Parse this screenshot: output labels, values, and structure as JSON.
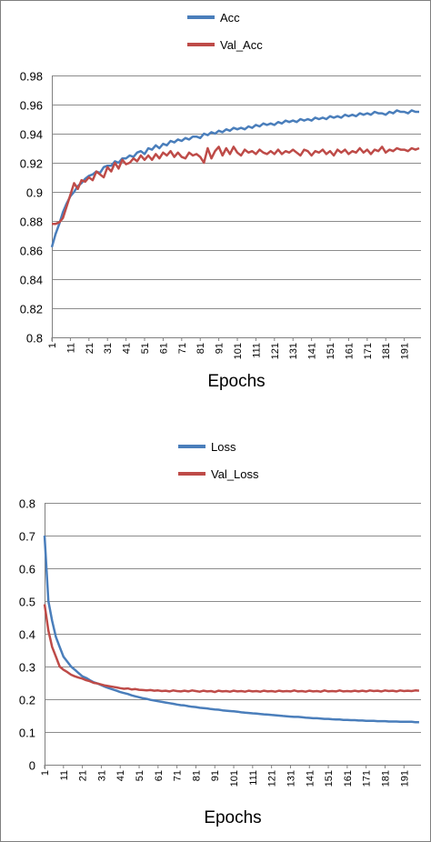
{
  "chart_data": [
    {
      "type": "line",
      "xlabel": "Epochs",
      "ylabel": "",
      "title": "",
      "legend_position": "top-center",
      "grid": true,
      "ylim": [
        0.8,
        0.98
      ],
      "yticks": [
        "0.8",
        "0.82",
        "0.84",
        "0.86",
        "0.88",
        "0.9",
        "0.92",
        "0.94",
        "0.96",
        "0.98"
      ],
      "xticks": [
        "1",
        "11",
        "21",
        "31",
        "41",
        "51",
        "61",
        "71",
        "81",
        "91",
        "101",
        "111",
        "121",
        "131",
        "141",
        "151",
        "161",
        "171",
        "181",
        "191"
      ],
      "x": [
        1,
        3,
        5,
        7,
        9,
        11,
        13,
        15,
        17,
        19,
        21,
        23,
        25,
        27,
        29,
        31,
        33,
        35,
        37,
        39,
        41,
        43,
        45,
        47,
        49,
        51,
        53,
        55,
        57,
        59,
        61,
        63,
        65,
        67,
        69,
        71,
        73,
        75,
        77,
        79,
        81,
        83,
        85,
        87,
        89,
        91,
        93,
        95,
        97,
        99,
        101,
        103,
        105,
        107,
        109,
        111,
        113,
        115,
        117,
        119,
        121,
        123,
        125,
        127,
        129,
        131,
        133,
        135,
        137,
        139,
        141,
        143,
        145,
        147,
        149,
        151,
        153,
        155,
        157,
        159,
        161,
        163,
        165,
        167,
        169,
        171,
        173,
        175,
        177,
        179,
        181,
        183,
        185,
        187,
        189,
        191,
        193,
        195,
        197,
        199
      ],
      "series": [
        {
          "name": "Acc",
          "color": "#4a7ebb",
          "values": [
            0.862,
            0.871,
            0.878,
            0.886,
            0.892,
            0.897,
            0.9,
            0.904,
            0.906,
            0.909,
            0.911,
            0.912,
            0.914,
            0.913,
            0.917,
            0.918,
            0.918,
            0.921,
            0.92,
            0.923,
            0.923,
            0.925,
            0.924,
            0.927,
            0.928,
            0.926,
            0.93,
            0.929,
            0.932,
            0.93,
            0.933,
            0.932,
            0.935,
            0.934,
            0.936,
            0.935,
            0.937,
            0.936,
            0.938,
            0.938,
            0.937,
            0.94,
            0.939,
            0.941,
            0.94,
            0.942,
            0.941,
            0.943,
            0.942,
            0.944,
            0.943,
            0.944,
            0.943,
            0.945,
            0.944,
            0.946,
            0.945,
            0.947,
            0.946,
            0.947,
            0.946,
            0.948,
            0.947,
            0.949,
            0.948,
            0.949,
            0.948,
            0.95,
            0.949,
            0.95,
            0.949,
            0.951,
            0.95,
            0.951,
            0.95,
            0.952,
            0.951,
            0.952,
            0.951,
            0.953,
            0.952,
            0.953,
            0.952,
            0.954,
            0.953,
            0.954,
            0.953,
            0.955,
            0.954,
            0.954,
            0.953,
            0.955,
            0.954,
            0.956,
            0.955,
            0.955,
            0.954,
            0.956,
            0.955,
            0.955
          ]
        },
        {
          "name": "Val_Acc",
          "color": "#be4b48",
          "values": [
            0.878,
            0.878,
            0.879,
            0.882,
            0.89,
            0.898,
            0.906,
            0.902,
            0.908,
            0.907,
            0.91,
            0.908,
            0.914,
            0.912,
            0.91,
            0.917,
            0.914,
            0.92,
            0.916,
            0.922,
            0.919,
            0.92,
            0.923,
            0.921,
            0.925,
            0.922,
            0.925,
            0.922,
            0.926,
            0.923,
            0.927,
            0.925,
            0.928,
            0.924,
            0.927,
            0.924,
            0.923,
            0.927,
            0.925,
            0.926,
            0.924,
            0.92,
            0.93,
            0.923,
            0.928,
            0.931,
            0.925,
            0.93,
            0.926,
            0.931,
            0.927,
            0.925,
            0.929,
            0.927,
            0.928,
            0.926,
            0.929,
            0.927,
            0.926,
            0.928,
            0.926,
            0.929,
            0.926,
            0.928,
            0.927,
            0.929,
            0.927,
            0.925,
            0.929,
            0.928,
            0.925,
            0.928,
            0.927,
            0.929,
            0.926,
            0.928,
            0.925,
            0.929,
            0.927,
            0.929,
            0.926,
            0.928,
            0.927,
            0.93,
            0.927,
            0.929,
            0.926,
            0.929,
            0.928,
            0.931,
            0.927,
            0.929,
            0.928,
            0.93,
            0.929,
            0.929,
            0.928,
            0.93,
            0.929,
            0.93
          ]
        }
      ]
    },
    {
      "type": "line",
      "xlabel": "Epochs",
      "ylabel": "",
      "title": "",
      "legend_position": "top-center",
      "grid": true,
      "ylim": [
        0,
        0.8
      ],
      "yticks": [
        "0",
        "0.1",
        "0.2",
        "0.3",
        "0.4",
        "0.5",
        "0.6",
        "0.7",
        "0.8"
      ],
      "xticks": [
        "1",
        "11",
        "21",
        "31",
        "41",
        "51",
        "61",
        "71",
        "81",
        "91",
        "101",
        "111",
        "121",
        "131",
        "141",
        "151",
        "161",
        "171",
        "181",
        "191"
      ],
      "x": [
        1,
        3,
        5,
        7,
        9,
        11,
        13,
        15,
        17,
        19,
        21,
        23,
        25,
        27,
        29,
        31,
        33,
        35,
        37,
        39,
        41,
        43,
        45,
        47,
        49,
        51,
        53,
        55,
        57,
        59,
        61,
        63,
        65,
        67,
        69,
        71,
        73,
        75,
        77,
        79,
        81,
        83,
        85,
        87,
        89,
        91,
        93,
        95,
        97,
        99,
        101,
        103,
        105,
        107,
        109,
        111,
        113,
        115,
        117,
        119,
        121,
        123,
        125,
        127,
        129,
        131,
        133,
        135,
        137,
        139,
        141,
        143,
        145,
        147,
        149,
        151,
        153,
        155,
        157,
        159,
        161,
        163,
        165,
        167,
        169,
        171,
        173,
        175,
        177,
        179,
        181,
        183,
        185,
        187,
        189,
        191,
        193,
        195,
        197,
        199
      ],
      "series": [
        {
          "name": "Loss",
          "color": "#4a7ebb",
          "values": [
            0.7,
            0.5,
            0.44,
            0.39,
            0.36,
            0.33,
            0.315,
            0.3,
            0.29,
            0.28,
            0.27,
            0.265,
            0.258,
            0.252,
            0.248,
            0.243,
            0.238,
            0.234,
            0.23,
            0.226,
            0.222,
            0.219,
            0.216,
            0.212,
            0.209,
            0.206,
            0.203,
            0.201,
            0.198,
            0.196,
            0.194,
            0.192,
            0.19,
            0.188,
            0.186,
            0.184,
            0.182,
            0.181,
            0.179,
            0.177,
            0.176,
            0.174,
            0.173,
            0.172,
            0.17,
            0.169,
            0.168,
            0.166,
            0.165,
            0.164,
            0.163,
            0.162,
            0.16,
            0.159,
            0.158,
            0.157,
            0.156,
            0.155,
            0.154,
            0.153,
            0.152,
            0.151,
            0.15,
            0.149,
            0.148,
            0.147,
            0.146,
            0.146,
            0.145,
            0.144,
            0.143,
            0.142,
            0.142,
            0.141,
            0.14,
            0.14,
            0.139,
            0.138,
            0.138,
            0.137,
            0.137,
            0.136,
            0.136,
            0.135,
            0.135,
            0.134,
            0.134,
            0.134,
            0.133,
            0.133,
            0.133,
            0.132,
            0.132,
            0.132,
            0.131,
            0.131,
            0.131,
            0.131,
            0.13,
            0.13
          ]
        },
        {
          "name": "Val_Loss",
          "color": "#be4b48",
          "values": [
            0.49,
            0.41,
            0.36,
            0.33,
            0.3,
            0.29,
            0.283,
            0.275,
            0.27,
            0.266,
            0.263,
            0.258,
            0.255,
            0.25,
            0.248,
            0.245,
            0.242,
            0.24,
            0.238,
            0.236,
            0.234,
            0.232,
            0.233,
            0.23,
            0.231,
            0.229,
            0.228,
            0.227,
            0.228,
            0.226,
            0.227,
            0.225,
            0.226,
            0.224,
            0.227,
            0.225,
            0.224,
            0.226,
            0.224,
            0.227,
            0.225,
            0.223,
            0.226,
            0.224,
            0.225,
            0.222,
            0.226,
            0.224,
            0.225,
            0.223,
            0.226,
            0.224,
            0.225,
            0.223,
            0.226,
            0.224,
            0.225,
            0.223,
            0.226,
            0.224,
            0.225,
            0.223,
            0.226,
            0.224,
            0.225,
            0.224,
            0.227,
            0.224,
            0.225,
            0.223,
            0.226,
            0.224,
            0.225,
            0.223,
            0.227,
            0.224,
            0.225,
            0.224,
            0.227,
            0.224,
            0.225,
            0.224,
            0.226,
            0.224,
            0.226,
            0.224,
            0.227,
            0.225,
            0.226,
            0.224,
            0.227,
            0.225,
            0.226,
            0.224,
            0.227,
            0.225,
            0.226,
            0.225,
            0.227,
            0.226
          ]
        }
      ]
    }
  ]
}
